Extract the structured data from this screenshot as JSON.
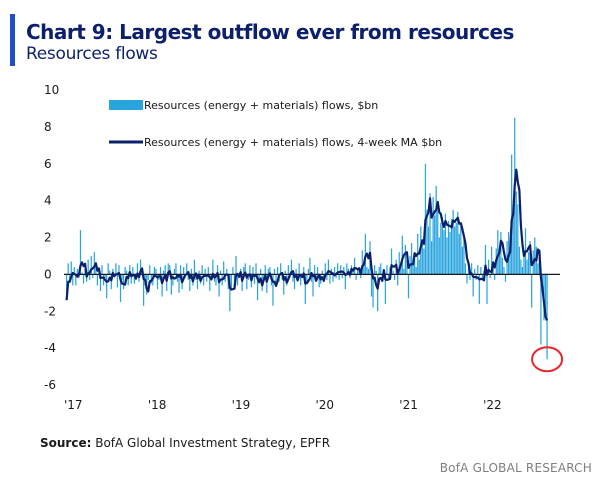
{
  "header": {
    "title": "Chart 9: Largest outflow ever from resources",
    "subtitle": "Resources flows"
  },
  "footer": {
    "source_label": "Source:",
    "source_text": "BofA Global Investment Strategy, EPFR",
    "brand": "BofA GLOBAL RESEARCH"
  },
  "colors": {
    "bars": "#2aa4dd",
    "line": "#0b1f6b",
    "zero_line": "#1a1a1a",
    "highlight_circle": "#e8262b",
    "title": "#0b1f6b",
    "accent_bar": "#1f4fc4"
  },
  "chart_data": {
    "type": "bar",
    "title": "Chart 9: Largest outflow ever from resources",
    "subtitle": "Resources flows",
    "xlabel": "",
    "ylabel": "",
    "ylim": [
      -6,
      10
    ],
    "yticks": [
      -6,
      -4,
      -2,
      0,
      2,
      4,
      6,
      8,
      10
    ],
    "xlim": [
      2017.0,
      2022.75
    ],
    "xticks": [
      {
        "label": "'17",
        "value": 2017.0
      },
      {
        "label": "'18",
        "value": 2018.0
      },
      {
        "label": "'19",
        "value": 2019.0
      },
      {
        "label": "'20",
        "value": 2020.0
      },
      {
        "label": "'21",
        "value": 2021.0
      },
      {
        "label": "'22",
        "value": 2022.0
      }
    ],
    "grid": false,
    "legend_position": "top-left",
    "annotation": "red circle marking latest weekly outflow (about -4.6)",
    "series": [
      {
        "name": "Resources (energy + materials) flows, $bn",
        "type": "bar",
        "frequency": "weekly",
        "start": "2017-01",
        "values": [
          -1.4,
          0.6,
          -0.4,
          0.7,
          -0.6,
          0.4,
          -0.6,
          0.3,
          -0.2,
          2.4,
          0.1,
          -0.5,
          0.3,
          -0.4,
          0.8,
          -0.3,
          1.0,
          -0.2,
          1.2,
          0.4,
          -0.6,
          0.3,
          -0.9,
          0.5,
          -0.6,
          -0.2,
          -1.3,
          0.6,
          0.2,
          -0.8,
          0.3,
          -0.1,
          0.6,
          -0.7,
          0.5,
          -1.5,
          -0.3,
          -0.8,
          0.4,
          0.2,
          -0.6,
          0.5,
          -0.5,
          0.4,
          -0.5,
          -0.3,
          0.6,
          -0.4,
          0.8,
          0.3,
          -1.7,
          -0.6,
          -1.1,
          -0.3,
          0.5,
          -0.5,
          -0.6,
          0.4,
          0.3,
          -0.8,
          -0.3,
          0.4,
          -1.2,
          0.2,
          0.5,
          -0.9,
          0.6,
          0.5,
          -1.1,
          -0.6,
          0.3,
          0.6,
          -0.4,
          -1.0,
          0.5,
          -0.8,
          0.4,
          -0.2,
          0.6,
          -0.3,
          -0.9,
          0.3,
          -0.6,
          0.8,
          -0.3,
          -0.8,
          0.2,
          -0.5,
          0.5,
          -0.6,
          0.3,
          -0.4,
          0.4,
          -0.9,
          -0.2,
          0.8,
          -0.4,
          -0.6,
          0.5,
          -1.2,
          0.2,
          -0.6,
          0.7,
          -0.4,
          0.3,
          -0.8,
          -2.0,
          -0.8,
          0.4,
          -0.7,
          1.0,
          -0.6,
          -0.2,
          0.3,
          -0.9,
          0.4,
          0.6,
          -0.8,
          -0.3,
          0.5,
          -0.7,
          0.4,
          -0.5,
          0.6,
          -1.4,
          -0.4,
          0.3,
          -0.9,
          -0.2,
          0.5,
          -1.0,
          0.3,
          0.4,
          -0.6,
          -1.7,
          0.3,
          -0.5,
          0.4,
          -0.4,
          0.6,
          -0.3,
          -1.1,
          0.2,
          -0.6,
          0.5,
          -0.2,
          0.8,
          -0.4,
          -0.8,
          0.3,
          -0.4,
          0.6,
          -0.6,
          -0.2,
          0.4,
          -1.6,
          -0.5,
          0.3,
          0.9,
          -0.4,
          -1.2,
          0.5,
          -0.3,
          0.4,
          -0.7,
          -0.5,
          0.2,
          -0.4,
          0.6,
          -0.3,
          0.8,
          -0.5,
          0.3,
          -0.4,
          0.4,
          -0.2,
          0.6,
          -0.3,
          0.5,
          -0.2,
          0.4,
          -0.8,
          0.6,
          0.3,
          -0.2,
          0.5,
          0.2,
          0.9,
          -0.3,
          0.3,
          0.4,
          -0.2,
          1.3,
          0.6,
          2.2,
          0.4,
          0.3,
          1.8,
          -1.2,
          -1.8,
          0.5,
          0.2,
          -2.0,
          0.4,
          0.6,
          -0.4,
          0.3,
          -1.6,
          0.5,
          -0.3,
          0.4,
          1.4,
          0.2,
          -0.3,
          0.8,
          -0.6,
          1.2,
          0.6,
          2.1,
          0.3,
          1.6,
          0.8,
          -1.3,
          1.0,
          1.7,
          0.8,
          1.1,
          0.4,
          2.2,
          0.8,
          2.6,
          1.8,
          1.4,
          6.0,
          3.5,
          2.6,
          4.4,
          1.8,
          4.2,
          3.2,
          4.8,
          3.5,
          2.0,
          2.8,
          3.1,
          2.4,
          3.3,
          2.0,
          2.9,
          2.3,
          3.0,
          3.5,
          2.6,
          2.8,
          3.4,
          2.2,
          2.7,
          1.5,
          1.9,
          0.6,
          -0.5,
          0.4,
          -0.3,
          0.6,
          -1.2,
          0.3,
          -0.3,
          0.5,
          -1.6,
          0.4,
          -0.3,
          0.2,
          1.6,
          -1.6,
          0.8,
          -0.2,
          1.5,
          0.5,
          -0.3,
          1.4,
          2.4,
          1.2,
          2.3,
          0.9,
          0.4,
          -0.4,
          1.8,
          2.3,
          1.1,
          6.5,
          3.2,
          8.5,
          4.5,
          3.8,
          1.5,
          0.8,
          0.4,
          1.3,
          2.5,
          0.8,
          1.2,
          1.8,
          -1.8,
          1.3,
          2.0,
          1.5,
          0.6,
          1.0,
          -3.8,
          -0.8,
          -2.5,
          -2.1,
          -4.6
        ]
      },
      {
        "name": "Resources (energy + materials) flows, 4-week MA $bn",
        "type": "line",
        "smoothing": "4-week moving average of the bar series"
      }
    ]
  }
}
